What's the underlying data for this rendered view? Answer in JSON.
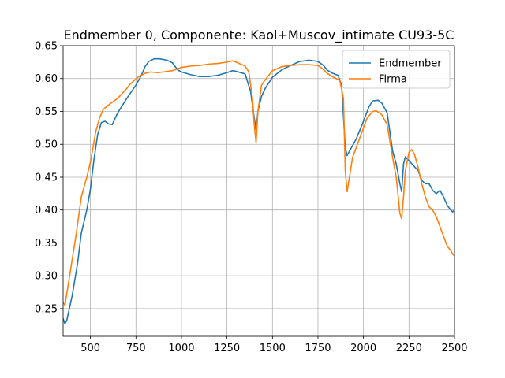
{
  "chart_data": {
    "type": "line",
    "title": "Endmember 0, Componente: Kaol+Muscov_intimate CU93-5C",
    "xlabel": "",
    "ylabel": "",
    "xlim": [
      350,
      2500
    ],
    "ylim": [
      0.208,
      0.65
    ],
    "grid": true,
    "legend_position": "top-right",
    "x_ticks": [
      500,
      750,
      1000,
      1250,
      1500,
      1750,
      2000,
      2250,
      2500
    ],
    "x_tick_labels": [
      "500",
      "750",
      "1000",
      "1250",
      "1500",
      "1750",
      "2000",
      "2250",
      "2500"
    ],
    "y_ticks": [
      0.25,
      0.3,
      0.35,
      0.4,
      0.45,
      0.5,
      0.55,
      0.6,
      0.65
    ],
    "y_tick_labels": [
      "0.25",
      "0.30",
      "0.35",
      "0.40",
      "0.45",
      "0.50",
      "0.55",
      "0.60",
      "0.65"
    ],
    "series": [
      {
        "name": "Endmember",
        "color": "#1f77b4",
        "points": [
          [
            350,
            0.235
          ],
          [
            360,
            0.227
          ],
          [
            370,
            0.232
          ],
          [
            400,
            0.27
          ],
          [
            430,
            0.32
          ],
          [
            450,
            0.365
          ],
          [
            480,
            0.4
          ],
          [
            500,
            0.432
          ],
          [
            520,
            0.478
          ],
          [
            540,
            0.515
          ],
          [
            560,
            0.533
          ],
          [
            580,
            0.535
          ],
          [
            600,
            0.531
          ],
          [
            620,
            0.53
          ],
          [
            650,
            0.548
          ],
          [
            700,
            0.57
          ],
          [
            750,
            0.59
          ],
          [
            780,
            0.605
          ],
          [
            800,
            0.618
          ],
          [
            820,
            0.626
          ],
          [
            850,
            0.63
          ],
          [
            880,
            0.63
          ],
          [
            920,
            0.628
          ],
          [
            950,
            0.624
          ],
          [
            980,
            0.613
          ],
          [
            1000,
            0.61
          ],
          [
            1050,
            0.606
          ],
          [
            1100,
            0.603
          ],
          [
            1150,
            0.603
          ],
          [
            1200,
            0.605
          ],
          [
            1250,
            0.609
          ],
          [
            1280,
            0.612
          ],
          [
            1300,
            0.611
          ],
          [
            1350,
            0.607
          ],
          [
            1380,
            0.58
          ],
          [
            1400,
            0.54
          ],
          [
            1410,
            0.522
          ],
          [
            1420,
            0.55
          ],
          [
            1440,
            0.573
          ],
          [
            1460,
            0.585
          ],
          [
            1500,
            0.602
          ],
          [
            1550,
            0.613
          ],
          [
            1600,
            0.62
          ],
          [
            1650,
            0.626
          ],
          [
            1700,
            0.628
          ],
          [
            1750,
            0.626
          ],
          [
            1780,
            0.62
          ],
          [
            1800,
            0.613
          ],
          [
            1830,
            0.608
          ],
          [
            1860,
            0.605
          ],
          [
            1880,
            0.59
          ],
          [
            1900,
            0.495
          ],
          [
            1910,
            0.483
          ],
          [
            1920,
            0.488
          ],
          [
            1960,
            0.508
          ],
          [
            2000,
            0.535
          ],
          [
            2030,
            0.557
          ],
          [
            2050,
            0.566
          ],
          [
            2080,
            0.567
          ],
          [
            2100,
            0.563
          ],
          [
            2130,
            0.548
          ],
          [
            2160,
            0.49
          ],
          [
            2180,
            0.47
          ],
          [
            2200,
            0.44
          ],
          [
            2210,
            0.428
          ],
          [
            2220,
            0.47
          ],
          [
            2230,
            0.481
          ],
          [
            2260,
            0.472
          ],
          [
            2300,
            0.46
          ],
          [
            2320,
            0.445
          ],
          [
            2340,
            0.44
          ],
          [
            2360,
            0.44
          ],
          [
            2380,
            0.43
          ],
          [
            2400,
            0.425
          ],
          [
            2420,
            0.43
          ],
          [
            2440,
            0.42
          ],
          [
            2460,
            0.407
          ],
          [
            2480,
            0.4
          ],
          [
            2490,
            0.397
          ],
          [
            2500,
            0.4
          ]
        ]
      },
      {
        "name": "Firma",
        "color": "#ff7f0e",
        "points": [
          [
            350,
            0.26
          ],
          [
            360,
            0.255
          ],
          [
            380,
            0.29
          ],
          [
            420,
            0.36
          ],
          [
            450,
            0.42
          ],
          [
            480,
            0.45
          ],
          [
            500,
            0.473
          ],
          [
            530,
            0.52
          ],
          [
            550,
            0.54
          ],
          [
            570,
            0.553
          ],
          [
            600,
            0.56
          ],
          [
            650,
            0.57
          ],
          [
            700,
            0.585
          ],
          [
            720,
            0.592
          ],
          [
            760,
            0.602
          ],
          [
            800,
            0.608
          ],
          [
            830,
            0.61
          ],
          [
            870,
            0.609
          ],
          [
            900,
            0.61
          ],
          [
            950,
            0.612
          ],
          [
            1000,
            0.617
          ],
          [
            1050,
            0.619
          ],
          [
            1100,
            0.62
          ],
          [
            1150,
            0.622
          ],
          [
            1200,
            0.623
          ],
          [
            1250,
            0.625
          ],
          [
            1280,
            0.627
          ],
          [
            1300,
            0.625
          ],
          [
            1350,
            0.619
          ],
          [
            1370,
            0.61
          ],
          [
            1390,
            0.57
          ],
          [
            1400,
            0.53
          ],
          [
            1410,
            0.502
          ],
          [
            1420,
            0.55
          ],
          [
            1440,
            0.59
          ],
          [
            1460,
            0.598
          ],
          [
            1500,
            0.612
          ],
          [
            1550,
            0.618
          ],
          [
            1600,
            0.62
          ],
          [
            1650,
            0.621
          ],
          [
            1700,
            0.621
          ],
          [
            1750,
            0.62
          ],
          [
            1780,
            0.614
          ],
          [
            1800,
            0.608
          ],
          [
            1830,
            0.603
          ],
          [
            1870,
            0.597
          ],
          [
            1890,
            0.57
          ],
          [
            1900,
            0.46
          ],
          [
            1910,
            0.428
          ],
          [
            1920,
            0.445
          ],
          [
            1940,
            0.48
          ],
          [
            1980,
            0.51
          ],
          [
            2020,
            0.54
          ],
          [
            2050,
            0.55
          ],
          [
            2070,
            0.551
          ],
          [
            2100,
            0.545
          ],
          [
            2130,
            0.53
          ],
          [
            2160,
            0.48
          ],
          [
            2180,
            0.45
          ],
          [
            2200,
            0.395
          ],
          [
            2210,
            0.387
          ],
          [
            2220,
            0.42
          ],
          [
            2230,
            0.46
          ],
          [
            2250,
            0.488
          ],
          [
            2265,
            0.492
          ],
          [
            2280,
            0.485
          ],
          [
            2300,
            0.465
          ],
          [
            2320,
            0.44
          ],
          [
            2340,
            0.42
          ],
          [
            2360,
            0.405
          ],
          [
            2380,
            0.4
          ],
          [
            2400,
            0.39
          ],
          [
            2420,
            0.375
          ],
          [
            2440,
            0.36
          ],
          [
            2460,
            0.345
          ],
          [
            2480,
            0.338
          ],
          [
            2490,
            0.333
          ],
          [
            2500,
            0.33
          ]
        ]
      }
    ]
  }
}
